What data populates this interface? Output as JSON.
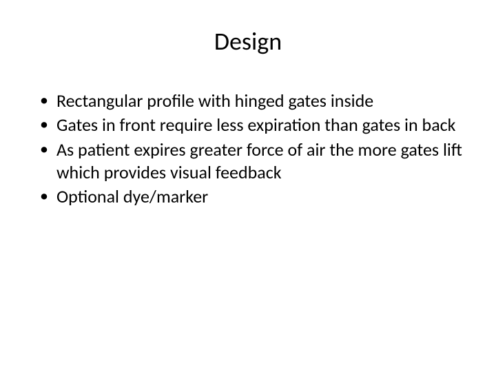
{
  "slide": {
    "title": "Design",
    "bullets": [
      "Rectangular profile with hinged gates inside",
      "Gates in front require less expiration than gates in back",
      "As patient expires greater force of air the more gates lift which provides visual feedback",
      "Optional dye/marker"
    ],
    "title_fontsize": 36,
    "bullet_fontsize": 26,
    "background_color": "#ffffff",
    "text_color": "#000000",
    "bullet_marker": "•"
  }
}
